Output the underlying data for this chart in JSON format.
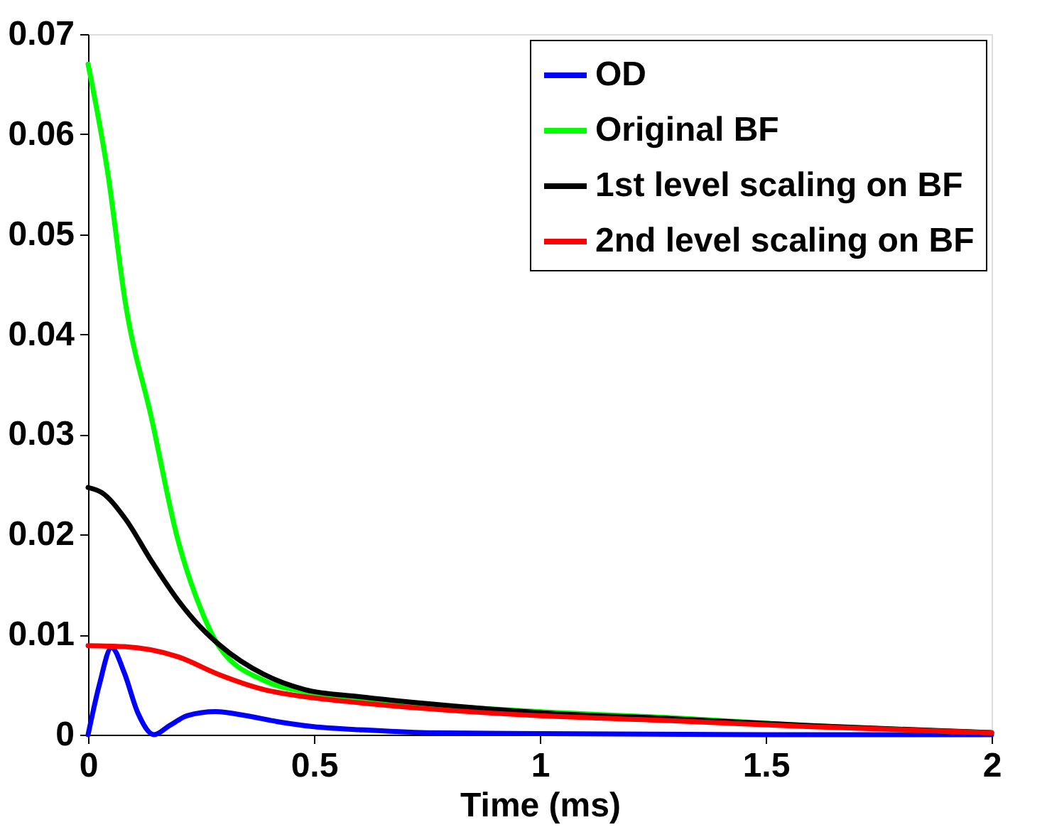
{
  "chart_data": {
    "type": "line",
    "xlabel": "Time (ms)",
    "xlim": [
      0,
      2
    ],
    "xticks": [
      0,
      0.5,
      1,
      1.5,
      2
    ],
    "ylim": [
      0,
      0.07
    ],
    "yticks": [
      0,
      0.01,
      0.02,
      0.03,
      0.04,
      0.05,
      0.06,
      0.07
    ],
    "grid": false,
    "legend": "top right",
    "marker": "none",
    "line_style": "solid",
    "series": [
      {
        "name": "OD",
        "color": "#0000ff",
        "x": [
          0,
          0.025,
          0.052,
          0.08,
          0.11,
          0.146,
          0.18,
          0.22,
          0.282,
          0.35,
          0.42,
          0.5,
          0.6,
          0.75,
          1.0,
          1.5,
          2.0
        ],
        "values": [
          0,
          0.005,
          0.0087,
          0.0062,
          0.0022,
          0,
          0.0009,
          0.0019,
          0.0023,
          0.0019,
          0.0013,
          0.0008,
          0.0005,
          0.0002,
          0.0001,
          0,
          0
        ]
      },
      {
        "name": "Original BF",
        "color": "#00ff00",
        "x": [
          0,
          0.044,
          0.082,
          0.141,
          0.198,
          0.25,
          0.29,
          0.39,
          0.48,
          0.6,
          0.75,
          1.0,
          1.29,
          1.6,
          2.0
        ],
        "values": [
          0.067,
          0.056,
          0.0433,
          0.0315,
          0.0196,
          0.0125,
          0.0088,
          0.0054,
          0.0043,
          0.0036,
          0.003,
          0.0023,
          0.0017,
          0.0009,
          0.0002
        ]
      },
      {
        "name": "1st level scaling on BF",
        "color": "#000000",
        "x": [
          0,
          0.03,
          0.082,
          0.141,
          0.198,
          0.25,
          0.29,
          0.39,
          0.48,
          0.6,
          0.75,
          1.0,
          1.29,
          1.6,
          2.0
        ],
        "values": [
          0.0247,
          0.0242,
          0.0216,
          0.0173,
          0.0135,
          0.0107,
          0.009,
          0.006,
          0.0045,
          0.0038,
          0.0031,
          0.0022,
          0.0016,
          0.0009,
          0.0002
        ]
      },
      {
        "name": "2nd level scaling on BF",
        "color": "#ff0000",
        "x": [
          0,
          0.08,
          0.198,
          0.29,
          0.39,
          0.48,
          0.6,
          0.75,
          1.0,
          1.29,
          1.6,
          2.0
        ],
        "values": [
          0.0089,
          0.0088,
          0.0078,
          0.006,
          0.0045,
          0.0038,
          0.0032,
          0.0026,
          0.0019,
          0.0014,
          0.0008,
          0.0002
        ]
      }
    ]
  }
}
